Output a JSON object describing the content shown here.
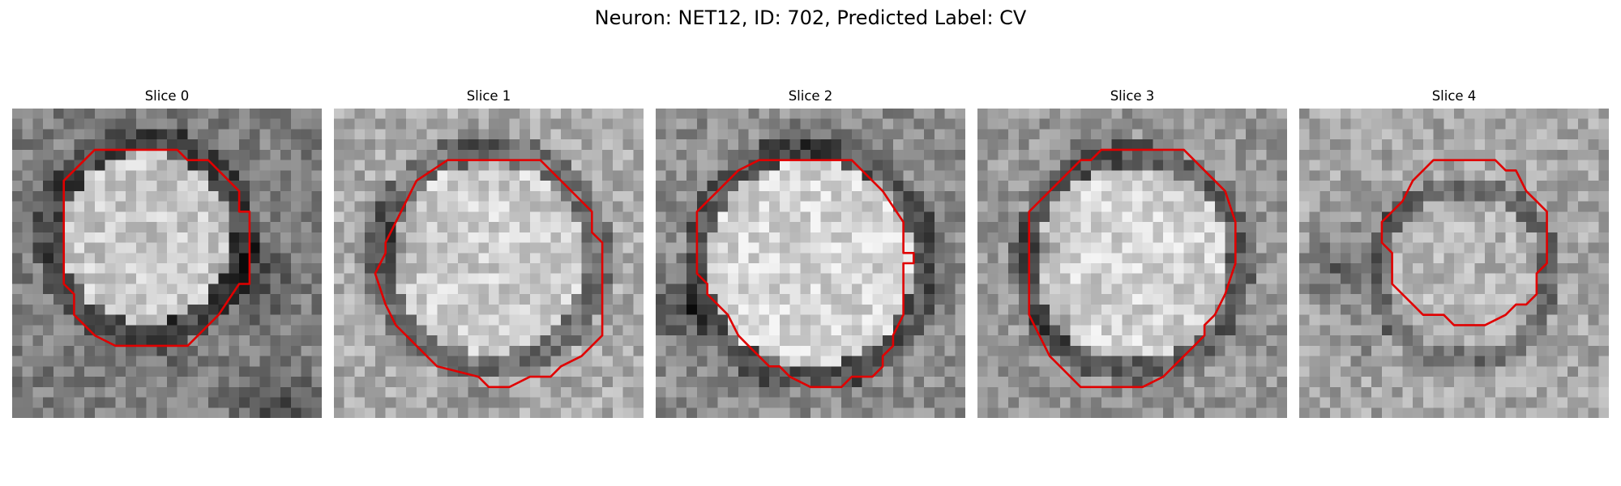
{
  "figure": {
    "title": "Neuron: NET12, ID: 702, Predicted Label: CV"
  },
  "panels": [
    {
      "title": "Slice 0"
    },
    {
      "title": "Slice 1"
    },
    {
      "title": "Slice 2"
    },
    {
      "title": "Slice 3"
    },
    {
      "title": "Slice 4"
    }
  ],
  "colors": {
    "contour": "#e00000"
  }
}
